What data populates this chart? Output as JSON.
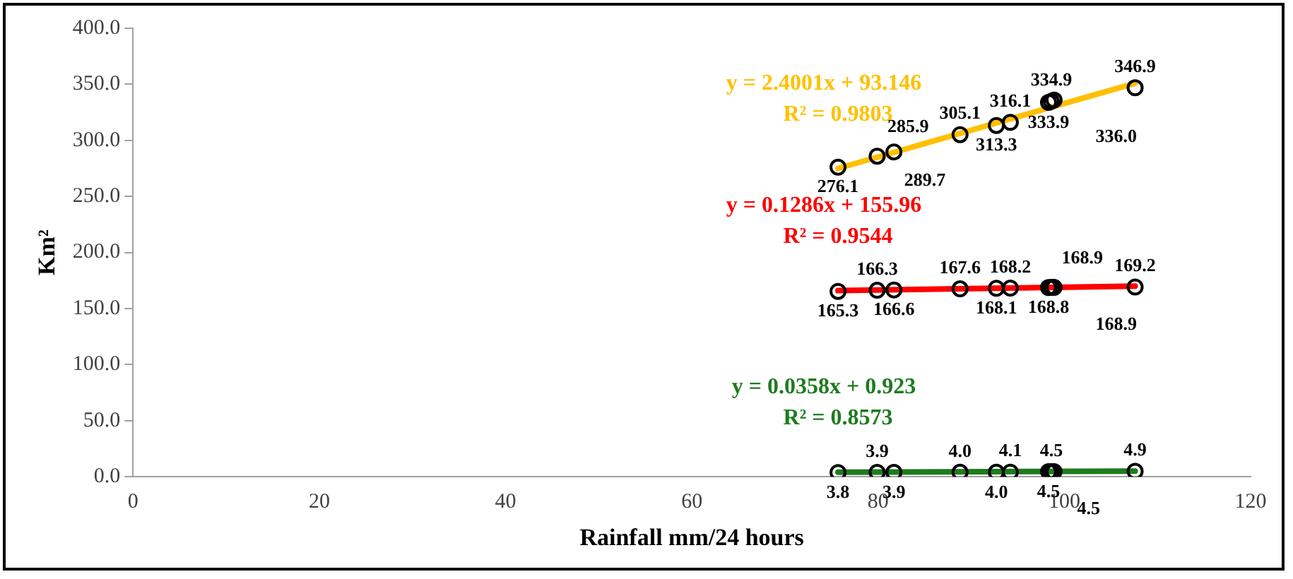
{
  "chart_data": {
    "type": "scatter",
    "xlabel": "Rainfall mm/24 hours",
    "ylabel": "Km²",
    "xlim": [
      0,
      120
    ],
    "xticks": [
      0,
      20,
      40,
      60,
      80,
      100,
      120
    ],
    "ylim": [
      0,
      400
    ],
    "yticks": [
      {
        "value": 0,
        "label": "0.0"
      },
      {
        "value": 50,
        "label": "50.0"
      },
      {
        "value": 100,
        "label": "100.0"
      },
      {
        "value": 150,
        "label": "150.0"
      },
      {
        "value": 200,
        "label": "200.0"
      },
      {
        "value": 250,
        "label": "250.0"
      },
      {
        "value": 300,
        "label": "300.0"
      },
      {
        "value": 350,
        "label": "350.0"
      },
      {
        "value": 400,
        "label": "400.0"
      }
    ],
    "grid": false,
    "legend": false,
    "series": [
      {
        "type": "line",
        "marker": "none",
        "name": "y = 2.4001x + 93.146\nR² = 0.9803",
        "color": "#ffc000",
        "x": [
          75.7,
          107.6
        ],
        "values": [
          275,
          351
        ]
      },
      {
        "type": "line",
        "marker": "none",
        "name": "y = 0.1286x + 155.96\nR² = 0.9544",
        "color": "#ff0000",
        "x": [
          75.7,
          107.6
        ],
        "values": [
          166,
          170
        ]
      },
      {
        "type": "line",
        "marker": "none",
        "name": "y = 0.0358x + 0.923\nR² = 0.8573",
        "color": "#1e7b1e",
        "x": [
          75.7,
          107.6
        ],
        "values": [
          4,
          5
        ]
      },
      {
        "marker": "circle",
        "color": "#000000",
        "x": [
          75.7,
          79.9,
          81.7,
          88.8,
          92.7,
          94.2,
          98.3,
          98.6,
          98.9,
          107.6
        ],
        "values": [
          276.1,
          285.9,
          289.7,
          305.1,
          313.3,
          316.1,
          333.9,
          334.9,
          336.0,
          346.9
        ],
        "value_labels": [
          "276.1",
          "285.9",
          "289.7",
          "305.1",
          "313.3",
          "316.1",
          "333.9",
          "334.9",
          "336.0",
          "346.9"
        ]
      },
      {
        "marker": "circle",
        "color": "#000000",
        "x": [
          75.7,
          79.9,
          81.7,
          88.8,
          92.7,
          94.2,
          98.3,
          98.6,
          98.9,
          107.6
        ],
        "values": [
          165.3,
          166.3,
          166.6,
          167.6,
          168.1,
          168.2,
          168.8,
          168.9,
          168.9,
          169.2
        ],
        "value_labels": [
          "165.3",
          "166.3",
          "166.6",
          "167.6",
          "168.1",
          "168.2",
          "168.8",
          "168.9",
          "168.9",
          "169.2"
        ]
      },
      {
        "marker": "circle",
        "color": "#000000",
        "x": [
          75.7,
          79.9,
          81.7,
          88.8,
          92.7,
          94.2,
          98.3,
          98.6,
          98.9,
          107.6
        ],
        "values": [
          3.8,
          3.9,
          3.9,
          4.0,
          4.0,
          4.1,
          4.5,
          4.5,
          4.5,
          4.9
        ],
        "value_labels": [
          "3.8",
          "3.9",
          "3.9",
          "4.0",
          "4.0",
          "4.1",
          "4.5",
          "4.5",
          "4.5",
          "4.9"
        ]
      }
    ]
  }
}
